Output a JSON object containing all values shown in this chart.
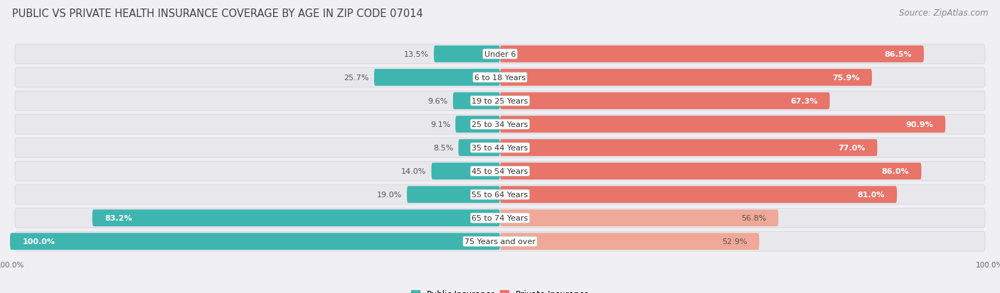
{
  "title": "PUBLIC VS PRIVATE HEALTH INSURANCE COVERAGE BY AGE IN ZIP CODE 07014",
  "source": "Source: ZipAtlas.com",
  "categories": [
    "Under 6",
    "6 to 18 Years",
    "19 to 25 Years",
    "25 to 34 Years",
    "35 to 44 Years",
    "45 to 54 Years",
    "55 to 64 Years",
    "65 to 74 Years",
    "75 Years and over"
  ],
  "public_values": [
    13.5,
    25.7,
    9.6,
    9.1,
    8.5,
    14.0,
    19.0,
    83.2,
    100.0
  ],
  "private_values": [
    86.5,
    75.9,
    67.3,
    90.9,
    77.0,
    86.0,
    81.0,
    56.8,
    52.9
  ],
  "public_color_strong": "#3fb5b0",
  "public_color_light": "#3fb5b0",
  "private_color_strong": "#e8746a",
  "private_color_light": "#f0a898",
  "bg_row_color": "#e8e8ec",
  "bg_outer_color": "#f0f0f4",
  "title_color": "#444444",
  "source_color": "#888888",
  "label_white": "#ffffff",
  "label_dark": "#555555",
  "title_fontsize": 10.5,
  "source_fontsize": 8.5,
  "bar_label_fontsize": 8.0,
  "category_fontsize": 8.0,
  "legend_fontsize": 8.5,
  "axis_tick_fontsize": 7.5
}
